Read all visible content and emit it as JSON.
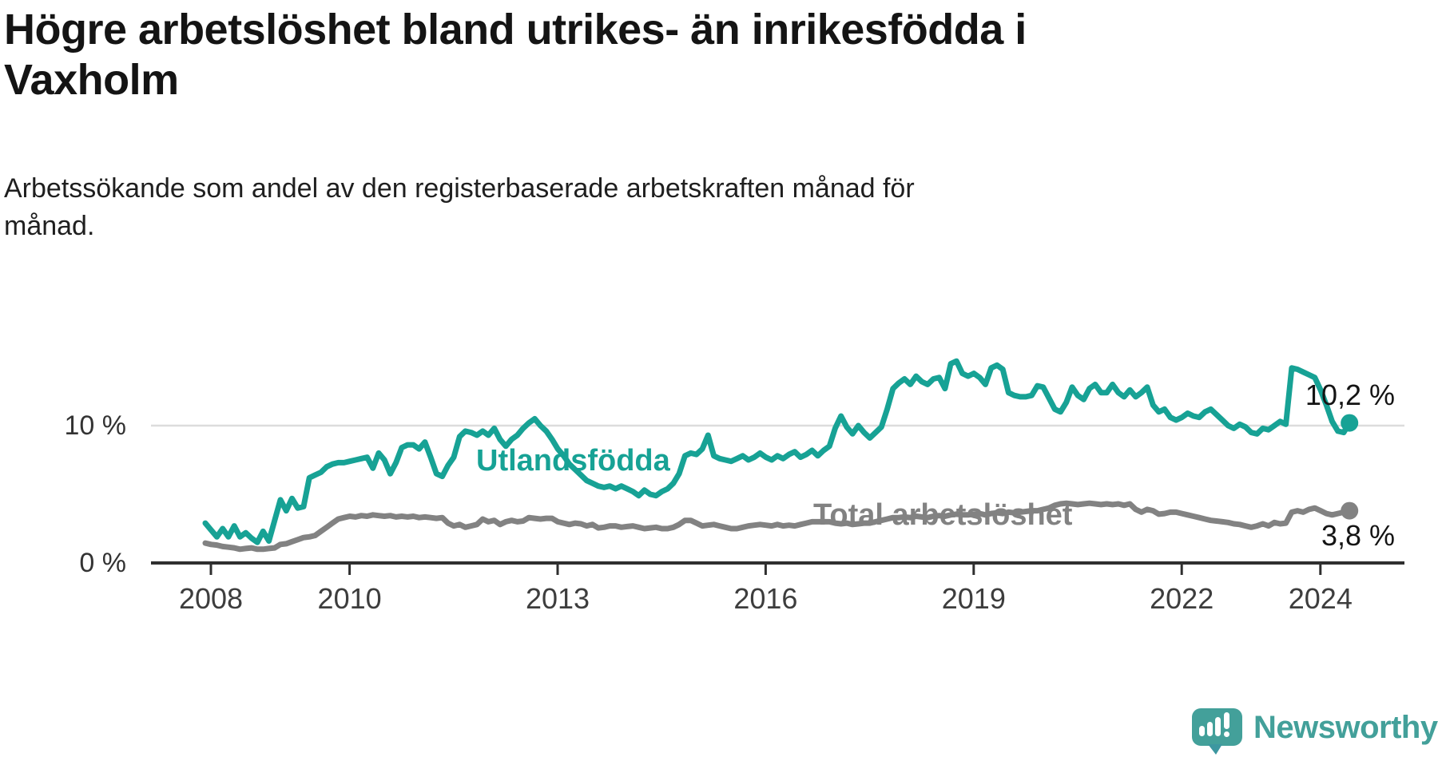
{
  "header": {
    "title_lines": [
      "Högre arbetslöshet bland utrikes- än inrikesfödda i",
      "Vaxholm"
    ],
    "subtitle_lines": [
      "Arbetssökande som andel av den registerbaserade arbetskraften månad för",
      "månad."
    ]
  },
  "chart_data": {
    "type": "line",
    "title": "Högre arbetslöshet bland utrikes- än inrikesfödda i Vaxholm",
    "subtitle": "Arbetssökande som andel av den registerbaserade arbetskraften månad för månad.",
    "frequency": "monthly",
    "x_start": "2008-01",
    "x_end": "2024-07",
    "x_tick_labels": [
      "2008",
      "2010",
      "2013",
      "2016",
      "2019",
      "2022",
      "2024"
    ],
    "x_tick_years": [
      2008,
      2010,
      2013,
      2016,
      2019,
      2022,
      2024
    ],
    "y_ticks": [
      {
        "label": "10 %",
        "value": 10
      },
      {
        "label": "0 %",
        "value": 0
      }
    ],
    "ylabel": "",
    "xlabel": "",
    "ylim": [
      0,
      15.5
    ],
    "grid": "single horizontal gridline at 10 %",
    "legend_position": "inline labels next to lines",
    "axis_color": "#2f2f2f",
    "grid_color": "#dcdcdc",
    "series": [
      {
        "name": "Utlandsfödda",
        "color": "#17a295",
        "end_label": "10,2 %",
        "end_value": 10.2,
        "values": [
          2.9,
          2.4,
          1.9,
          2.5,
          1.9,
          2.7,
          1.9,
          2.2,
          1.8,
          1.5,
          2.3,
          1.6,
          3.1,
          4.6,
          3.8,
          4.7,
          4.0,
          4.1,
          6.2,
          6.4,
          6.6,
          7.0,
          7.2,
          7.3,
          7.3,
          7.4,
          7.5,
          7.6,
          7.7,
          6.9,
          8.0,
          7.5,
          6.5,
          7.3,
          8.4,
          8.6,
          8.6,
          8.3,
          8.8,
          7.7,
          6.5,
          6.3,
          7.1,
          7.7,
          9.2,
          9.6,
          9.5,
          9.3,
          9.6,
          9.3,
          9.8,
          9.0,
          8.5,
          9.0,
          9.3,
          9.8,
          10.2,
          10.5,
          10.0,
          9.6,
          9.0,
          8.3,
          7.8,
          7.2,
          6.8,
          6.4,
          6.0,
          5.8,
          5.6,
          5.5,
          5.6,
          5.4,
          5.6,
          5.4,
          5.2,
          4.9,
          5.3,
          5.0,
          4.9,
          5.2,
          5.4,
          5.8,
          6.5,
          7.8,
          8.0,
          7.9,
          8.3,
          9.3,
          7.8,
          7.6,
          7.5,
          7.4,
          7.6,
          7.8,
          7.5,
          7.7,
          8.0,
          7.7,
          7.5,
          7.8,
          7.6,
          7.9,
          8.1,
          7.7,
          7.9,
          8.2,
          7.8,
          8.2,
          8.5,
          9.8,
          10.7,
          9.9,
          9.4,
          10.0,
          9.5,
          9.1,
          9.5,
          9.9,
          11.2,
          12.7,
          13.1,
          13.4,
          13.0,
          13.6,
          13.2,
          13.0,
          13.4,
          13.5,
          12.7,
          14.5,
          14.7,
          13.8,
          13.6,
          13.8,
          13.5,
          13.0,
          14.2,
          14.4,
          14.1,
          12.4,
          12.2,
          12.1,
          12.1,
          12.2,
          12.9,
          12.8,
          12.0,
          11.2,
          11.0,
          11.7,
          12.8,
          12.2,
          11.9,
          12.7,
          13.0,
          12.4,
          12.4,
          13.0,
          12.4,
          12.1,
          12.6,
          12.1,
          12.4,
          12.8,
          11.5,
          11.0,
          11.2,
          10.6,
          10.4,
          10.6,
          10.9,
          10.7,
          10.6,
          11.0,
          11.2,
          10.8,
          10.4,
          10.0,
          9.8,
          10.1,
          9.9,
          9.5,
          9.4,
          9.8,
          9.7,
          10.0,
          10.3,
          10.1,
          14.2,
          14.1,
          13.9,
          13.7,
          13.5,
          12.6,
          11.5,
          10.3,
          9.6,
          9.5,
          10.2
        ]
      },
      {
        "name": "Total arbetslöshet",
        "color": "#828282",
        "end_label": "3,8 %",
        "end_value": 3.8,
        "values": [
          1.45,
          1.35,
          1.3,
          1.2,
          1.15,
          1.1,
          1.0,
          1.05,
          1.1,
          1.0,
          1.0,
          1.05,
          1.1,
          1.35,
          1.4,
          1.55,
          1.7,
          1.85,
          1.9,
          2.0,
          2.3,
          2.6,
          2.9,
          3.2,
          3.3,
          3.4,
          3.35,
          3.45,
          3.4,
          3.5,
          3.45,
          3.4,
          3.45,
          3.35,
          3.4,
          3.35,
          3.4,
          3.3,
          3.35,
          3.3,
          3.25,
          3.3,
          2.9,
          2.7,
          2.8,
          2.6,
          2.7,
          2.8,
          3.2,
          3.0,
          3.1,
          2.8,
          3.0,
          3.1,
          3.0,
          3.05,
          3.3,
          3.25,
          3.2,
          3.25,
          3.25,
          3.0,
          2.9,
          2.8,
          2.9,
          2.85,
          2.7,
          2.8,
          2.55,
          2.6,
          2.7,
          2.7,
          2.6,
          2.65,
          2.7,
          2.6,
          2.5,
          2.55,
          2.6,
          2.5,
          2.5,
          2.6,
          2.8,
          3.1,
          3.1,
          2.9,
          2.7,
          2.75,
          2.8,
          2.7,
          2.6,
          2.5,
          2.5,
          2.6,
          2.7,
          2.75,
          2.8,
          2.75,
          2.7,
          2.8,
          2.7,
          2.75,
          2.7,
          2.8,
          2.9,
          3.0,
          3.0,
          3.0,
          3.0,
          2.9,
          2.85,
          2.9,
          2.8,
          2.85,
          2.9,
          2.9,
          3.0,
          3.1,
          3.2,
          3.3,
          3.3,
          3.35,
          3.3,
          3.4,
          3.35,
          3.3,
          3.4,
          3.45,
          3.4,
          3.5,
          3.55,
          3.5,
          3.5,
          3.55,
          3.6,
          3.5,
          3.6,
          3.65,
          3.6,
          3.7,
          3.65,
          3.7,
          3.75,
          3.8,
          3.8,
          3.9,
          4.0,
          4.2,
          4.3,
          4.35,
          4.3,
          4.25,
          4.3,
          4.35,
          4.3,
          4.25,
          4.3,
          4.25,
          4.3,
          4.2,
          4.3,
          3.9,
          3.7,
          3.9,
          3.8,
          3.55,
          3.6,
          3.7,
          3.7,
          3.6,
          3.5,
          3.4,
          3.3,
          3.2,
          3.1,
          3.05,
          3.0,
          2.95,
          2.85,
          2.8,
          2.7,
          2.6,
          2.7,
          2.85,
          2.7,
          2.95,
          2.85,
          2.9,
          3.7,
          3.8,
          3.7,
          3.9,
          4.0,
          3.8,
          3.6,
          3.5,
          3.6,
          3.7,
          3.8
        ]
      }
    ]
  },
  "footer": {
    "logo_text": "Newsworthy",
    "logo_color": "#43a09a"
  }
}
